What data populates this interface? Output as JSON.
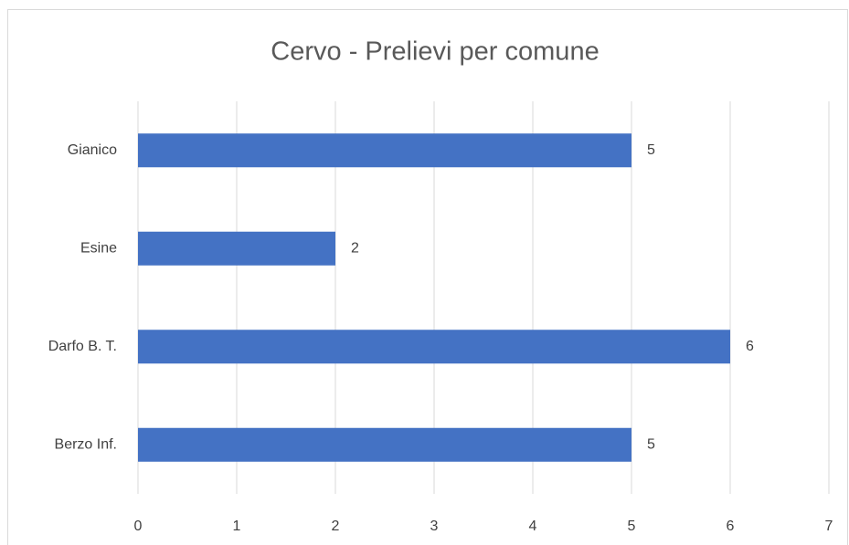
{
  "chart_data": {
    "type": "bar",
    "orientation": "horizontal",
    "title": "Cervo - Prelievi per comune",
    "categories": [
      "Gianico",
      "Esine",
      "Darfo B. T.",
      "Berzo Inf."
    ],
    "values": [
      5,
      2,
      6,
      5
    ],
    "color": "#4472c4",
    "xlim": [
      0,
      7
    ],
    "xticks": [
      0,
      1,
      2,
      3,
      4,
      5,
      6,
      7
    ],
    "grid": true
  }
}
